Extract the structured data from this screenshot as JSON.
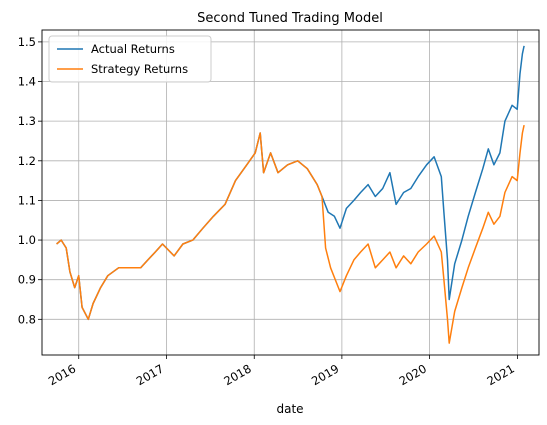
{
  "chart_data": {
    "type": "line",
    "title": "Second Tuned Trading Model",
    "xlabel": "date",
    "ylabel": "",
    "xlim": [
      "2015-08-01",
      "2021-04-01"
    ],
    "ylim": [
      0.71,
      1.53
    ],
    "grid": true,
    "legend_position": "upper-left",
    "x_ticks": [
      "2016-01-01",
      "2017-01-01",
      "2018-01-01",
      "2019-01-01",
      "2020-01-01",
      "2021-01-01"
    ],
    "x_tick_labels": [
      "2016",
      "2017",
      "2018",
      "2019",
      "2020",
      "2021"
    ],
    "y_ticks": [
      0.8,
      0.9,
      1.0,
      1.1,
      1.2,
      1.3,
      1.4,
      1.5
    ],
    "y_tick_labels": [
      "0.8",
      "0.9",
      "1.0",
      "1.1",
      "1.2",
      "1.3",
      "1.4",
      "1.5"
    ],
    "series": [
      {
        "name": "Actual Returns",
        "color": "#1f77b4",
        "points": [
          [
            "2015-10-01",
            0.99
          ],
          [
            "2015-10-20",
            1.0
          ],
          [
            "2015-11-10",
            0.98
          ],
          [
            "2015-11-25",
            0.92
          ],
          [
            "2015-12-15",
            0.88
          ],
          [
            "2016-01-01",
            0.91
          ],
          [
            "2016-01-15",
            0.83
          ],
          [
            "2016-02-10",
            0.8
          ],
          [
            "2016-03-01",
            0.84
          ],
          [
            "2016-04-01",
            0.88
          ],
          [
            "2016-05-01",
            0.91
          ],
          [
            "2016-06-15",
            0.93
          ],
          [
            "2016-08-01",
            0.93
          ],
          [
            "2016-09-15",
            0.93
          ],
          [
            "2016-10-15",
            0.95
          ],
          [
            "2016-11-15",
            0.97
          ],
          [
            "2016-12-15",
            0.99
          ],
          [
            "2017-02-01",
            0.96
          ],
          [
            "2017-03-10",
            0.99
          ],
          [
            "2017-04-20",
            1.0
          ],
          [
            "2017-06-01",
            1.03
          ],
          [
            "2017-07-15",
            1.06
          ],
          [
            "2017-09-01",
            1.09
          ],
          [
            "2017-10-15",
            1.15
          ],
          [
            "2017-12-01",
            1.19
          ],
          [
            "2018-01-05",
            1.22
          ],
          [
            "2018-01-26",
            1.27
          ],
          [
            "2018-02-09",
            1.17
          ],
          [
            "2018-03-10",
            1.22
          ],
          [
            "2018-04-10",
            1.17
          ],
          [
            "2018-05-20",
            1.19
          ],
          [
            "2018-07-01",
            1.2
          ],
          [
            "2018-08-10",
            1.18
          ],
          [
            "2018-09-20",
            1.14
          ],
          [
            "2018-10-10",
            1.11
          ],
          [
            "2018-11-05",
            1.07
          ],
          [
            "2018-12-01",
            1.06
          ],
          [
            "2018-12-24",
            1.03
          ],
          [
            "2019-01-20",
            1.08
          ],
          [
            "2019-02-20",
            1.1
          ],
          [
            "2019-03-20",
            1.12
          ],
          [
            "2019-04-20",
            1.14
          ],
          [
            "2019-05-20",
            1.11
          ],
          [
            "2019-06-20",
            1.13
          ],
          [
            "2019-07-20",
            1.17
          ],
          [
            "2019-08-15",
            1.09
          ],
          [
            "2019-09-15",
            1.12
          ],
          [
            "2019-10-15",
            1.13
          ],
          [
            "2019-11-15",
            1.16
          ],
          [
            "2019-12-20",
            1.19
          ],
          [
            "2020-01-20",
            1.21
          ],
          [
            "2020-02-19",
            1.16
          ],
          [
            "2020-03-01",
            1.07
          ],
          [
            "2020-03-16",
            0.95
          ],
          [
            "2020-03-23",
            0.85
          ],
          [
            "2020-04-15",
            0.94
          ],
          [
            "2020-05-15",
            1.0
          ],
          [
            "2020-06-10",
            1.06
          ],
          [
            "2020-07-10",
            1.12
          ],
          [
            "2020-08-10",
            1.18
          ],
          [
            "2020-09-02",
            1.23
          ],
          [
            "2020-09-25",
            1.19
          ],
          [
            "2020-10-20",
            1.22
          ],
          [
            "2020-11-10",
            1.3
          ],
          [
            "2020-12-10",
            1.34
          ],
          [
            "2020-12-31",
            1.33
          ],
          [
            "2021-01-12",
            1.42
          ],
          [
            "2021-01-22",
            1.47
          ],
          [
            "2021-01-29",
            1.49
          ]
        ]
      },
      {
        "name": "Strategy Returns",
        "color": "#ff7f0e",
        "points": [
          [
            "2015-10-01",
            0.99
          ],
          [
            "2015-10-20",
            1.0
          ],
          [
            "2015-11-10",
            0.98
          ],
          [
            "2015-11-25",
            0.92
          ],
          [
            "2015-12-15",
            0.88
          ],
          [
            "2016-01-01",
            0.91
          ],
          [
            "2016-01-15",
            0.83
          ],
          [
            "2016-02-10",
            0.8
          ],
          [
            "2016-03-01",
            0.84
          ],
          [
            "2016-04-01",
            0.88
          ],
          [
            "2016-05-01",
            0.91
          ],
          [
            "2016-06-15",
            0.93
          ],
          [
            "2016-08-01",
            0.93
          ],
          [
            "2016-09-15",
            0.93
          ],
          [
            "2016-10-15",
            0.95
          ],
          [
            "2016-11-15",
            0.97
          ],
          [
            "2016-12-15",
            0.99
          ],
          [
            "2017-02-01",
            0.96
          ],
          [
            "2017-03-10",
            0.99
          ],
          [
            "2017-04-20",
            1.0
          ],
          [
            "2017-06-01",
            1.03
          ],
          [
            "2017-07-15",
            1.06
          ],
          [
            "2017-09-01",
            1.09
          ],
          [
            "2017-10-15",
            1.15
          ],
          [
            "2017-12-01",
            1.19
          ],
          [
            "2018-01-05",
            1.22
          ],
          [
            "2018-01-26",
            1.27
          ],
          [
            "2018-02-09",
            1.17
          ],
          [
            "2018-03-10",
            1.22
          ],
          [
            "2018-04-10",
            1.17
          ],
          [
            "2018-05-20",
            1.19
          ],
          [
            "2018-07-01",
            1.2
          ],
          [
            "2018-08-10",
            1.18
          ],
          [
            "2018-09-20",
            1.14
          ],
          [
            "2018-10-10",
            1.11
          ],
          [
            "2018-10-25",
            0.98
          ],
          [
            "2018-11-15",
            0.93
          ],
          [
            "2018-12-24",
            0.87
          ],
          [
            "2019-01-20",
            0.91
          ],
          [
            "2019-02-20",
            0.95
          ],
          [
            "2019-03-20",
            0.97
          ],
          [
            "2019-04-20",
            0.99
          ],
          [
            "2019-05-20",
            0.93
          ],
          [
            "2019-06-20",
            0.95
          ],
          [
            "2019-07-20",
            0.97
          ],
          [
            "2019-08-15",
            0.93
          ],
          [
            "2019-09-15",
            0.96
          ],
          [
            "2019-10-15",
            0.94
          ],
          [
            "2019-11-15",
            0.97
          ],
          [
            "2019-12-20",
            0.99
          ],
          [
            "2020-01-20",
            1.01
          ],
          [
            "2020-02-19",
            0.97
          ],
          [
            "2020-03-01",
            0.9
          ],
          [
            "2020-03-16",
            0.8
          ],
          [
            "2020-03-23",
            0.74
          ],
          [
            "2020-04-15",
            0.82
          ],
          [
            "2020-05-15",
            0.88
          ],
          [
            "2020-06-10",
            0.93
          ],
          [
            "2020-07-10",
            0.98
          ],
          [
            "2020-08-10",
            1.03
          ],
          [
            "2020-09-02",
            1.07
          ],
          [
            "2020-09-25",
            1.04
          ],
          [
            "2020-10-20",
            1.06
          ],
          [
            "2020-11-10",
            1.12
          ],
          [
            "2020-12-10",
            1.16
          ],
          [
            "2020-12-31",
            1.15
          ],
          [
            "2021-01-12",
            1.22
          ],
          [
            "2021-01-22",
            1.27
          ],
          [
            "2021-01-29",
            1.29
          ]
        ]
      }
    ]
  }
}
